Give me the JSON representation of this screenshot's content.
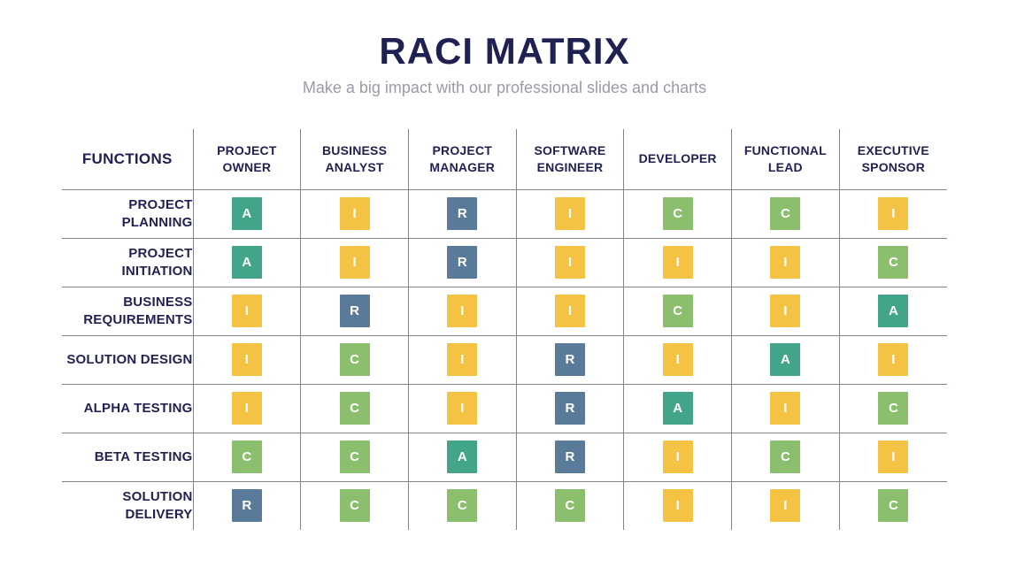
{
  "header": {
    "title": "RACI MATRIX",
    "subtitle": "Make a big impact with our professional slides and charts"
  },
  "colors": {
    "title_navy": "#1F2152",
    "subtitle_gray": "#9B9AA6",
    "grid_line": "#83838E",
    "raci_r": "#5A7A99",
    "raci_a": "#42A58A",
    "raci_c": "#8BBE6D",
    "raci_i": "#F5C344",
    "badge_text": "#FFFFFF"
  },
  "matrix": {
    "corner_label": "FUNCTIONS",
    "columns": [
      "PROJECT OWNER",
      "BUSINESS ANALYST",
      "PROJECT MANAGER",
      "SOFTWARE ENGINEER",
      "DEVELOPER",
      "FUNCTIONAL LEAD",
      "EXECUTIVE SPONSOR"
    ],
    "rows": [
      {
        "label": "PROJECT PLANNING",
        "values": [
          "A",
          "I",
          "R",
          "I",
          "C",
          "C",
          "I"
        ]
      },
      {
        "label": "PROJECT INITIATION",
        "values": [
          "A",
          "I",
          "R",
          "I",
          "I",
          "I",
          "C"
        ]
      },
      {
        "label": "BUSINESS REQUIREMENTS",
        "values": [
          "I",
          "R",
          "I",
          "I",
          "C",
          "I",
          "A"
        ]
      },
      {
        "label": "SOLUTION DESIGN",
        "values": [
          "I",
          "C",
          "I",
          "R",
          "I",
          "A",
          "I"
        ]
      },
      {
        "label": "ALPHA TESTING",
        "values": [
          "I",
          "C",
          "I",
          "R",
          "A",
          "I",
          "C"
        ]
      },
      {
        "label": "BETA TESTING",
        "values": [
          "C",
          "C",
          "A",
          "R",
          "I",
          "C",
          "I"
        ]
      },
      {
        "label": "SOLUTION DELIVERY",
        "values": [
          "R",
          "C",
          "C",
          "C",
          "I",
          "I",
          "C"
        ]
      }
    ]
  }
}
